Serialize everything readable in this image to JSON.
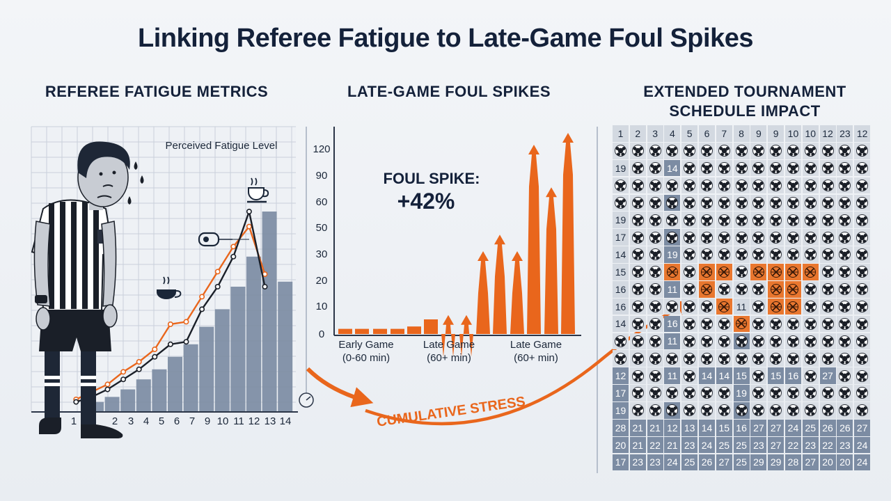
{
  "title": "Linking Referee Fatigue to Late-Game Foul Spikes",
  "sections": {
    "left": "REFEREE FATIGUE METRICS",
    "middle": "LATE-GAME FOUL SPIKES",
    "right": "EXTENDED TOURNAMENT SCHEDULE IMPACT"
  },
  "colors": {
    "navy": "#14213a",
    "orange": "#e9661c",
    "bar_blue": "#7c8ca3",
    "grid": "#c9d0da"
  },
  "chart_data": [
    {
      "type": "bar",
      "title": "Perceived Fatigue Level",
      "categories": [
        "1",
        "2",
        "3",
        "4",
        "5",
        "6",
        "7",
        "9",
        "10",
        "11",
        "12",
        "13",
        "14"
      ],
      "tick_labels": [
        "1",
        "",
        "2",
        "3",
        "4",
        "5",
        "6",
        "7",
        "9",
        "10",
        "11",
        "12",
        "13",
        "14"
      ],
      "values": [
        4,
        6,
        9,
        13,
        17,
        22,
        27,
        34,
        41,
        50,
        62,
        80,
        52
      ],
      "line_dark": [
        4,
        6,
        9,
        13,
        17,
        22,
        27,
        28,
        41,
        50,
        62,
        80,
        50
      ],
      "line_orange": [
        5,
        8,
        11,
        16,
        20,
        25,
        35,
        36,
        46,
        56,
        66,
        74,
        55
      ],
      "icons": [
        "coffee-cup-icon",
        "whistle-icon",
        "coffee-cup-icon"
      ]
    },
    {
      "type": "bar",
      "yticks": [
        "120",
        "90",
        "60",
        "50",
        "30",
        "20",
        "10",
        "0"
      ],
      "annotation_line1": "FOUL SPIKE:",
      "annotation_line2": "+42%",
      "category_labels": [
        {
          "line1": "Early Game",
          "line2": "(0-60 min)"
        },
        {
          "line1": "Late Game",
          "line2": "(60+ min)"
        },
        {
          "line1": "Late Game",
          "line2": "(60+ min)"
        }
      ],
      "values": [
        1,
        1,
        1,
        1,
        2,
        5,
        8,
        8,
        35,
        42,
        35,
        80,
        62,
        85
      ]
    }
  ],
  "flow_label": "CUMULATIVE STRESS",
  "schedule_grid": {
    "rows": [
      [
        "1",
        "2",
        "3",
        "4",
        "5",
        "6",
        "7",
        "8",
        "9",
        "9",
        "10",
        "10",
        "12",
        "23",
        "12"
      ],
      [
        "B",
        "B",
        "B",
        "B",
        "B",
        "B",
        "B",
        "B",
        "B",
        "B",
        "B",
        "B",
        "B",
        "B",
        "B"
      ],
      [
        "19",
        "B",
        "B",
        "14D",
        "B",
        "B",
        "B",
        "B",
        "B",
        "B",
        "B",
        "B",
        "B",
        "B",
        "B"
      ],
      [
        "B",
        "B",
        "B",
        "B",
        "B",
        "B",
        "B",
        "B",
        "B",
        "B",
        "B",
        "B",
        "B",
        "B",
        "B"
      ],
      [
        "B",
        "B",
        "B",
        "BD",
        "B",
        "B",
        "B",
        "B",
        "B",
        "B",
        "B",
        "B",
        "B",
        "B",
        "B"
      ],
      [
        "19",
        "B",
        "B",
        "B",
        "B",
        "B",
        "B",
        "B",
        "B",
        "B",
        "B",
        "B",
        "B",
        "B",
        "B"
      ],
      [
        "17",
        "B",
        "B",
        "BD",
        "B",
        "B",
        "B",
        "B",
        "B",
        "B",
        "B",
        "B",
        "B",
        "B",
        "B"
      ],
      [
        "14",
        "B",
        "B",
        "19D",
        "B",
        "B",
        "B",
        "B",
        "B",
        "B",
        "B",
        "B",
        "B",
        "B",
        "B"
      ],
      [
        "15",
        "B",
        "B",
        "O",
        "B",
        "O",
        "O",
        "B",
        "O",
        "O",
        "O",
        "O",
        "B",
        "B",
        "B"
      ],
      [
        "16",
        "B",
        "B",
        "11D",
        "B",
        "O",
        "B",
        "B",
        "B",
        "O",
        "O",
        "B",
        "B",
        "B",
        "B"
      ],
      [
        "16",
        "B",
        "B",
        "B",
        "B",
        "B",
        "O",
        "11",
        "B",
        "O",
        "O",
        "B",
        "B",
        "B",
        "B"
      ],
      [
        "14",
        "B",
        "B",
        "16D",
        "B",
        "B",
        "B",
        "O",
        "B",
        "B",
        "B",
        "B",
        "B",
        "B",
        "B"
      ],
      [
        "B",
        "B",
        "B",
        "11D",
        "B",
        "B",
        "B",
        "BD",
        "B",
        "B",
        "B",
        "B",
        "B",
        "B",
        "B"
      ],
      [
        "B",
        "B",
        "B",
        "B",
        "B",
        "B",
        "B",
        "B",
        "B",
        "B",
        "B",
        "B",
        "B",
        "B",
        "B"
      ],
      [
        "12",
        "B",
        "B",
        "11D",
        "B",
        "14",
        "14",
        "15",
        "B",
        "15",
        "16",
        "B",
        "27",
        "B",
        "B"
      ],
      [
        "17",
        "B",
        "B",
        "B",
        "B",
        "B",
        "B",
        "19D",
        "B",
        "B",
        "B",
        "B",
        "B",
        "B",
        "B"
      ],
      [
        "19",
        "B",
        "B",
        "BD",
        "B",
        "B",
        "B",
        "BD",
        "B",
        "B",
        "B",
        "B",
        "B",
        "B",
        "B"
      ],
      [
        "28",
        "21",
        "21",
        "12",
        "13",
        "14",
        "15",
        "16",
        "27",
        "27",
        "24",
        "25",
        "26",
        "26",
        "27"
      ],
      [
        "20",
        "21",
        "22",
        "21",
        "23",
        "24",
        "25",
        "25",
        "23",
        "27",
        "22",
        "23",
        "22",
        "23",
        "24"
      ],
      [
        "17",
        "23",
        "23",
        "24",
        "25",
        "26",
        "27",
        "25",
        "29",
        "29",
        "28",
        "27",
        "20",
        "20",
        "24"
      ]
    ]
  }
}
